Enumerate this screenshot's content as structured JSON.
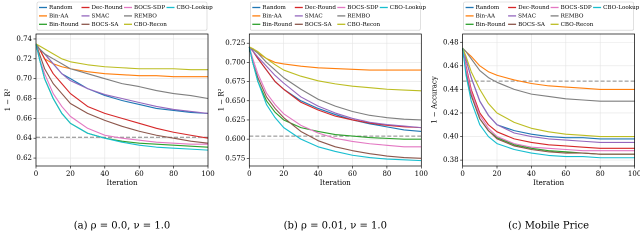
{
  "chart_data": [
    {
      "type": "line",
      "caption": "(a) ρ = 0.0, ν = 1.0",
      "xlabel": "Iteration",
      "ylabel": "1 − R²",
      "grid": true,
      "x": [
        0,
        2,
        5,
        10,
        15,
        20,
        30,
        40,
        50,
        60,
        70,
        80,
        90,
        100
      ],
      "xlim": [
        0,
        100
      ],
      "xticks": [
        0,
        20,
        40,
        60,
        80,
        100
      ],
      "ylim": [
        0.612,
        0.745
      ],
      "yticks": [
        0.62,
        0.64,
        0.66,
        0.68,
        {
          "value": 0.7,
          "label": "0.70"
        },
        0.72,
        0.74
      ],
      "reference_line": 0.641,
      "series": [
        {
          "name": "Random",
          "color": "#1f77b4",
          "values": [
            0.735,
            0.73,
            0.725,
            0.715,
            0.705,
            0.7,
            0.69,
            0.683,
            0.678,
            0.674,
            0.67,
            0.668,
            0.666,
            0.665
          ]
        },
        {
          "name": "Bin-AA",
          "color": "#ff7f0e",
          "values": [
            0.735,
            0.73,
            0.72,
            0.715,
            0.712,
            0.71,
            0.707,
            0.705,
            0.704,
            0.703,
            0.703,
            0.702,
            0.702,
            0.702
          ]
        },
        {
          "name": "Bin-Round",
          "color": "#2ca02c",
          "values": [
            0.735,
            0.72,
            0.7,
            0.68,
            0.665,
            0.655,
            0.645,
            0.64,
            0.637,
            0.635,
            0.634,
            0.633,
            0.632,
            0.631
          ]
        },
        {
          "name": "Dec-Round",
          "color": "#d62728",
          "values": [
            0.735,
            0.73,
            0.72,
            0.705,
            0.695,
            0.685,
            0.672,
            0.665,
            0.66,
            0.655,
            0.65,
            0.646,
            0.643,
            0.64
          ]
        },
        {
          "name": "SMAC",
          "color": "#9467bd",
          "values": [
            0.735,
            0.73,
            0.725,
            0.715,
            0.705,
            0.698,
            0.69,
            0.684,
            0.68,
            0.676,
            0.672,
            0.669,
            0.667,
            0.665
          ]
        },
        {
          "name": "BOCS-SA",
          "color": "#8c564b",
          "values": [
            0.735,
            0.725,
            0.71,
            0.695,
            0.685,
            0.675,
            0.665,
            0.658,
            0.652,
            0.647,
            0.643,
            0.64,
            0.637,
            0.635
          ]
        },
        {
          "name": "BOCS-SDP",
          "color": "#e377c2",
          "values": [
            0.735,
            0.72,
            0.705,
            0.685,
            0.672,
            0.662,
            0.65,
            0.643,
            0.64,
            0.638,
            0.636,
            0.635,
            0.634,
            0.634
          ]
        },
        {
          "name": "REMBO",
          "color": "#7f7f7f",
          "values": [
            0.735,
            0.73,
            0.725,
            0.72,
            0.715,
            0.71,
            0.705,
            0.7,
            0.695,
            0.692,
            0.688,
            0.685,
            0.683,
            0.68
          ]
        },
        {
          "name": "CBO-Recon",
          "color": "#bcbd22",
          "values": [
            0.735,
            0.733,
            0.73,
            0.725,
            0.72,
            0.717,
            0.714,
            0.712,
            0.711,
            0.71,
            0.71,
            0.71,
            0.709,
            0.709
          ]
        },
        {
          "name": "CBO-Lookup",
          "color": "#17becf",
          "values": [
            0.735,
            0.72,
            0.7,
            0.68,
            0.665,
            0.655,
            0.645,
            0.64,
            0.636,
            0.633,
            0.631,
            0.63,
            0.629,
            0.628
          ]
        }
      ]
    },
    {
      "type": "line",
      "caption": "(b) ρ = 0.01, ν = 1.0",
      "xlabel": "Iteration",
      "ylabel": "1 − R²",
      "grid": true,
      "x": [
        0,
        2,
        5,
        10,
        15,
        20,
        30,
        40,
        50,
        60,
        70,
        80,
        90,
        100
      ],
      "xlim": [
        0,
        100
      ],
      "xticks": [
        0,
        20,
        40,
        60,
        80,
        100
      ],
      "ylim": [
        0.565,
        0.737
      ],
      "yticks": [
        0.575,
        {
          "value": 0.6,
          "label": "0.600"
        },
        0.625,
        {
          "value": 0.65,
          "label": "0.650"
        },
        0.675,
        {
          "value": 0.7,
          "label": "0.700"
        },
        0.725
      ],
      "reference_line": 0.604,
      "series": [
        {
          "name": "Random",
          "color": "#1f77b4",
          "values": [
            0.72,
            0.715,
            0.705,
            0.69,
            0.675,
            0.665,
            0.65,
            0.64,
            0.632,
            0.625,
            0.62,
            0.616,
            0.612,
            0.61
          ]
        },
        {
          "name": "Bin-AA",
          "color": "#ff7f0e",
          "values": [
            0.72,
            0.718,
            0.712,
            0.705,
            0.7,
            0.698,
            0.695,
            0.693,
            0.692,
            0.691,
            0.69,
            0.69,
            0.69,
            0.69
          ]
        },
        {
          "name": "Bin-Round",
          "color": "#2ca02c",
          "values": [
            0.72,
            0.7,
            0.675,
            0.65,
            0.635,
            0.625,
            0.615,
            0.61,
            0.606,
            0.604,
            0.602,
            0.601,
            0.6,
            0.6
          ]
        },
        {
          "name": "Dec-Round",
          "color": "#d62728",
          "values": [
            0.72,
            0.715,
            0.705,
            0.69,
            0.675,
            0.665,
            0.648,
            0.638,
            0.63,
            0.625,
            0.621,
            0.618,
            0.616,
            0.615
          ]
        },
        {
          "name": "SMAC",
          "color": "#9467bd",
          "values": [
            0.72,
            0.715,
            0.707,
            0.695,
            0.683,
            0.673,
            0.655,
            0.643,
            0.634,
            0.627,
            0.622,
            0.619,
            0.617,
            0.615
          ]
        },
        {
          "name": "BOCS-SA",
          "color": "#8c564b",
          "values": [
            0.72,
            0.7,
            0.68,
            0.655,
            0.64,
            0.628,
            0.61,
            0.598,
            0.59,
            0.585,
            0.581,
            0.578,
            0.576,
            0.575
          ]
        },
        {
          "name": "BOCS-SDP",
          "color": "#e377c2",
          "values": [
            0.72,
            0.705,
            0.685,
            0.66,
            0.645,
            0.633,
            0.618,
            0.608,
            0.601,
            0.597,
            0.594,
            0.592,
            0.59,
            0.59
          ]
        },
        {
          "name": "REMBO",
          "color": "#7f7f7f",
          "values": [
            0.72,
            0.717,
            0.712,
            0.7,
            0.69,
            0.68,
            0.665,
            0.652,
            0.643,
            0.636,
            0.631,
            0.628,
            0.626,
            0.625
          ]
        },
        {
          "name": "CBO-Recon",
          "color": "#bcbd22",
          "values": [
            0.72,
            0.718,
            0.714,
            0.705,
            0.697,
            0.69,
            0.682,
            0.676,
            0.672,
            0.669,
            0.667,
            0.665,
            0.664,
            0.663
          ]
        },
        {
          "name": "CBO-Lookup",
          "color": "#17becf",
          "values": [
            0.72,
            0.7,
            0.675,
            0.645,
            0.628,
            0.615,
            0.6,
            0.59,
            0.584,
            0.579,
            0.576,
            0.574,
            0.573,
            0.572
          ]
        }
      ]
    },
    {
      "type": "line",
      "caption": "(c) Mobile Price",
      "xlabel": "Iteration",
      "ylabel": "1 − Accuracy",
      "grid": true,
      "x": [
        0,
        2,
        5,
        10,
        15,
        20,
        30,
        40,
        50,
        60,
        70,
        80,
        90,
        100
      ],
      "xlim": [
        0,
        100
      ],
      "xticks": [
        0,
        20,
        40,
        60,
        80,
        100
      ],
      "ylim": [
        0.375,
        0.487
      ],
      "yticks": [
        0.38,
        {
          "value": 0.4,
          "label": "0.40"
        },
        0.42,
        0.44,
        0.46,
        0.48
      ],
      "reference_line": 0.447,
      "series": [
        {
          "name": "Random",
          "color": "#1f77b4",
          "values": [
            0.475,
            0.465,
            0.45,
            0.43,
            0.418,
            0.41,
            0.405,
            0.402,
            0.4,
            0.399,
            0.399,
            0.398,
            0.398,
            0.398
          ]
        },
        {
          "name": "Bin-AA",
          "color": "#ff7f0e",
          "values": [
            0.475,
            0.472,
            0.468,
            0.46,
            0.455,
            0.452,
            0.448,
            0.445,
            0.443,
            0.442,
            0.441,
            0.44,
            0.44,
            0.44
          ]
        },
        {
          "name": "Bin-Round",
          "color": "#2ca02c",
          "values": [
            0.475,
            0.455,
            0.435,
            0.415,
            0.405,
            0.399,
            0.393,
            0.39,
            0.388,
            0.387,
            0.386,
            0.385,
            0.385,
            0.385
          ]
        },
        {
          "name": "Dec-Round",
          "color": "#d62728",
          "values": [
            0.475,
            0.46,
            0.44,
            0.42,
            0.41,
            0.404,
            0.398,
            0.395,
            0.393,
            0.392,
            0.391,
            0.39,
            0.39,
            0.39
          ]
        },
        {
          "name": "SMAC",
          "color": "#9467bd",
          "values": [
            0.475,
            0.465,
            0.45,
            0.43,
            0.418,
            0.41,
            0.403,
            0.4,
            0.398,
            0.397,
            0.396,
            0.395,
            0.395,
            0.395
          ]
        },
        {
          "name": "BOCS-SA",
          "color": "#8c564b",
          "values": [
            0.475,
            0.455,
            0.435,
            0.415,
            0.405,
            0.398,
            0.392,
            0.389,
            0.387,
            0.386,
            0.386,
            0.385,
            0.385,
            0.385
          ]
        },
        {
          "name": "BOCS-SDP",
          "color": "#e377c2",
          "values": [
            0.475,
            0.458,
            0.438,
            0.418,
            0.407,
            0.4,
            0.394,
            0.391,
            0.39,
            0.389,
            0.388,
            0.388,
            0.388,
            0.388
          ]
        },
        {
          "name": "REMBO",
          "color": "#7f7f7f",
          "values": [
            0.475,
            0.472,
            0.466,
            0.456,
            0.45,
            0.446,
            0.44,
            0.436,
            0.434,
            0.432,
            0.431,
            0.43,
            0.43,
            0.43
          ]
        },
        {
          "name": "CBO-Recon",
          "color": "#bcbd22",
          "values": [
            0.475,
            0.468,
            0.455,
            0.44,
            0.428,
            0.42,
            0.412,
            0.407,
            0.404,
            0.402,
            0.401,
            0.4,
            0.4,
            0.4
          ]
        },
        {
          "name": "CBO-Lookup",
          "color": "#17becf",
          "values": [
            0.475,
            0.452,
            0.43,
            0.41,
            0.4,
            0.394,
            0.389,
            0.386,
            0.384,
            0.383,
            0.383,
            0.382,
            0.382,
            0.382
          ]
        }
      ]
    }
  ]
}
